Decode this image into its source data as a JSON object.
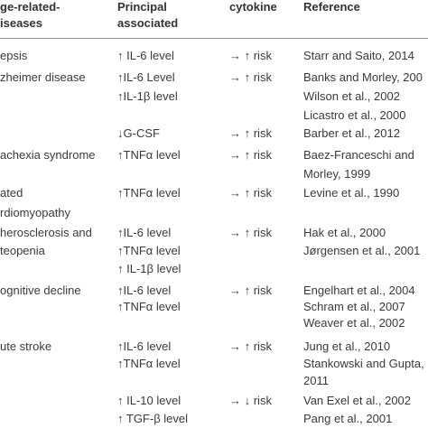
{
  "table": {
    "header": [
      [
        "ge-related-",
        "iseases"
      ],
      [
        "Principal",
        "associated"
      ],
      [
        "cytokine"
      ],
      [
        "Reference"
      ]
    ],
    "rows": [
      [
        [
          "epsis"
        ],
        [
          "↑ IL-6 level"
        ],
        [
          "→ ↑ risk"
        ],
        [
          "Starr and Saito, 2014"
        ]
      ],
      [
        [
          "zheimer disease"
        ],
        [
          "↑IL-6 Level",
          "↑IL-1β level"
        ],
        [
          "→ ↑ risk"
        ],
        [
          "Banks and Morley, 200",
          "Wilson et al., 2002",
          "Licastro et al., 2000"
        ]
      ],
      [
        [],
        [
          "↓G-CSF"
        ],
        [
          "→ ↑ risk"
        ],
        [
          "Barber et al., 2012"
        ]
      ],
      [
        [
          "achexia syndrome"
        ],
        [
          "↑TNFα level"
        ],
        [
          "→ ↑ risk"
        ],
        [
          "Baez-Franceschi and",
          "Morley, 1999"
        ]
      ],
      [
        [
          "ated",
          "rdiomyopathy"
        ],
        [
          "↑TNFα level"
        ],
        [
          "→ ↑ risk"
        ],
        [
          "Levine et al., 1990"
        ]
      ],
      [
        [
          "herosclerosis and",
          "teopenia"
        ],
        [
          "↑IL-6 level",
          "↑TNFα level",
          "↑ IL-1β level"
        ],
        [
          "→ ↑ risk"
        ],
        [
          "Hak et al., 2000",
          "Jørgensen et al., 2001"
        ]
      ],
      [
        [
          "ognitive decline"
        ],
        [
          "↑IL-6 level",
          "↑TNFα level"
        ],
        [
          "→ ↑ risk"
        ],
        [
          "Engelhart et al., 2004",
          "Schram et al., 2007",
          "Weaver et al., 2002"
        ]
      ],
      [
        [
          "ute stroke"
        ],
        [
          "↑IL-6 level",
          "↑TNFα level"
        ],
        [
          "→ ↑ risk"
        ],
        [
          "Jung et al., 2010",
          "Stankowski and Gupta,",
          "2011"
        ]
      ],
      [
        [],
        [
          "↑ IL-10 level",
          "↑ TGF-β level"
        ],
        [
          "→ ↓ risk"
        ],
        [
          "Van Exel et al., 2002",
          "Pang et al., 2001"
        ]
      ]
    ]
  }
}
